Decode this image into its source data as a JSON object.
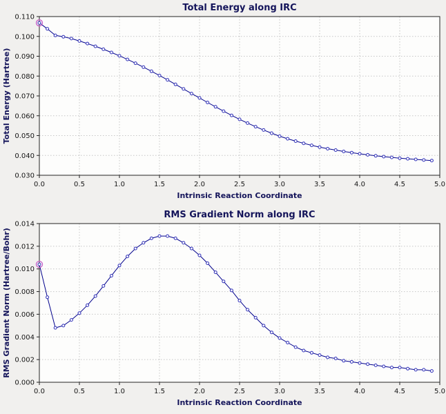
{
  "window": {
    "background": "#f1f0ee"
  },
  "chart_data": [
    {
      "type": "line",
      "title": "Total Energy along IRC",
      "xlabel": "Intrinsic Reaction Coordinate",
      "ylabel": "Total Energy (Hartree)",
      "xlim": [
        0.0,
        5.0
      ],
      "ylim": [
        0.03,
        0.11
      ],
      "grid": true,
      "legend": "none",
      "plot_bg": "#fdfdfc",
      "grid_color": "#c6c6c6",
      "line_color": "#00008b",
      "marker_color": "#2e2eb8",
      "highlight": {
        "index": 0,
        "color": "#c75dc7"
      },
      "xticks": {
        "values": [
          0.0,
          0.5,
          1.0,
          1.5,
          2.0,
          2.5,
          3.0,
          3.5,
          4.0,
          4.5,
          5.0
        ],
        "labels": [
          "0.0",
          "0.5",
          "1.0",
          "1.5",
          "2.0",
          "2.5",
          "3.0",
          "3.5",
          "4.0",
          "4.5",
          "5.0"
        ]
      },
      "yticks": {
        "values": [
          0.03,
          0.04,
          0.05,
          0.06,
          0.07,
          0.08,
          0.09,
          0.1,
          0.11
        ],
        "labels": [
          "0.030",
          "0.040",
          "0.050",
          "0.060",
          "0.070",
          "0.080",
          "0.090",
          "0.100",
          "0.110"
        ]
      },
      "x": [
        0.0,
        0.1,
        0.2,
        0.3,
        0.4,
        0.5,
        0.6,
        0.7,
        0.8,
        0.9,
        1.0,
        1.1,
        1.2,
        1.3,
        1.4,
        1.5,
        1.6,
        1.7,
        1.8,
        1.9,
        2.0,
        2.1,
        2.2,
        2.3,
        2.4,
        2.5,
        2.6,
        2.7,
        2.8,
        2.9,
        3.0,
        3.1,
        3.2,
        3.3,
        3.4,
        3.5,
        3.6,
        3.7,
        3.8,
        3.9,
        4.0,
        4.1,
        4.2,
        4.3,
        4.4,
        4.5,
        4.6,
        4.7,
        4.8,
        4.9
      ],
      "y": [
        0.1068,
        0.1038,
        0.1005,
        0.0998,
        0.0989,
        0.0977,
        0.0964,
        0.095,
        0.0935,
        0.0919,
        0.0902,
        0.0884,
        0.0865,
        0.0845,
        0.0824,
        0.0803,
        0.0781,
        0.0758,
        0.0735,
        0.0712,
        0.069,
        0.0667,
        0.0645,
        0.0623,
        0.0602,
        0.0582,
        0.0563,
        0.0545,
        0.0528,
        0.0512,
        0.0497,
        0.0484,
        0.0472,
        0.0461,
        0.0451,
        0.0442,
        0.0434,
        0.0427,
        0.042,
        0.0414,
        0.0408,
        0.0403,
        0.0398,
        0.0394,
        0.039,
        0.0386,
        0.0383,
        0.038,
        0.0377,
        0.0374
      ]
    },
    {
      "type": "line",
      "title": "RMS Gradient Norm along IRC",
      "xlabel": "Intrinsic Reaction Coordinate",
      "ylabel": "RMS Gradient Norm (Hartree/Bohr)",
      "xlim": [
        0.0,
        5.0
      ],
      "ylim": [
        0.0,
        0.014
      ],
      "grid": true,
      "legend": "none",
      "plot_bg": "#fdfdfc",
      "grid_color": "#c6c6c6",
      "line_color": "#00008b",
      "marker_color": "#2e2eb8",
      "highlight": {
        "index": 0,
        "color": "#c75dc7"
      },
      "xticks": {
        "values": [
          0.0,
          0.5,
          1.0,
          1.5,
          2.0,
          2.5,
          3.0,
          3.5,
          4.0,
          4.5,
          5.0
        ],
        "labels": [
          "0.0",
          "0.5",
          "1.0",
          "1.5",
          "2.0",
          "2.5",
          "3.0",
          "3.5",
          "4.0",
          "4.5",
          "5.0"
        ]
      },
      "yticks": {
        "values": [
          0.0,
          0.002,
          0.004,
          0.006,
          0.008,
          0.01,
          0.012,
          0.014
        ],
        "labels": [
          "0.000",
          "0.002",
          "0.004",
          "0.006",
          "0.008",
          "0.010",
          "0.012",
          "0.014"
        ]
      },
      "x": [
        0.0,
        0.1,
        0.2,
        0.3,
        0.4,
        0.5,
        0.6,
        0.7,
        0.8,
        0.9,
        1.0,
        1.1,
        1.2,
        1.3,
        1.4,
        1.5,
        1.6,
        1.7,
        1.8,
        1.9,
        2.0,
        2.1,
        2.2,
        2.3,
        2.4,
        2.5,
        2.6,
        2.7,
        2.8,
        2.9,
        3.0,
        3.1,
        3.2,
        3.3,
        3.4,
        3.5,
        3.6,
        3.7,
        3.8,
        3.9,
        4.0,
        4.1,
        4.2,
        4.3,
        4.4,
        4.5,
        4.6,
        4.7,
        4.8,
        4.9
      ],
      "y": [
        0.0104,
        0.0075,
        0.0048,
        0.005,
        0.0055,
        0.0061,
        0.0068,
        0.0076,
        0.0085,
        0.0094,
        0.0103,
        0.0111,
        0.0118,
        0.0123,
        0.0127,
        0.0129,
        0.0129,
        0.0127,
        0.0123,
        0.0118,
        0.0112,
        0.0105,
        0.0097,
        0.0089,
        0.0081,
        0.0072,
        0.0064,
        0.0057,
        0.005,
        0.0044,
        0.0039,
        0.0035,
        0.0031,
        0.0028,
        0.0026,
        0.0024,
        0.0022,
        0.0021,
        0.0019,
        0.0018,
        0.0017,
        0.0016,
        0.0015,
        0.0014,
        0.0013,
        0.0013,
        0.0012,
        0.0011,
        0.0011,
        0.001
      ]
    }
  ]
}
